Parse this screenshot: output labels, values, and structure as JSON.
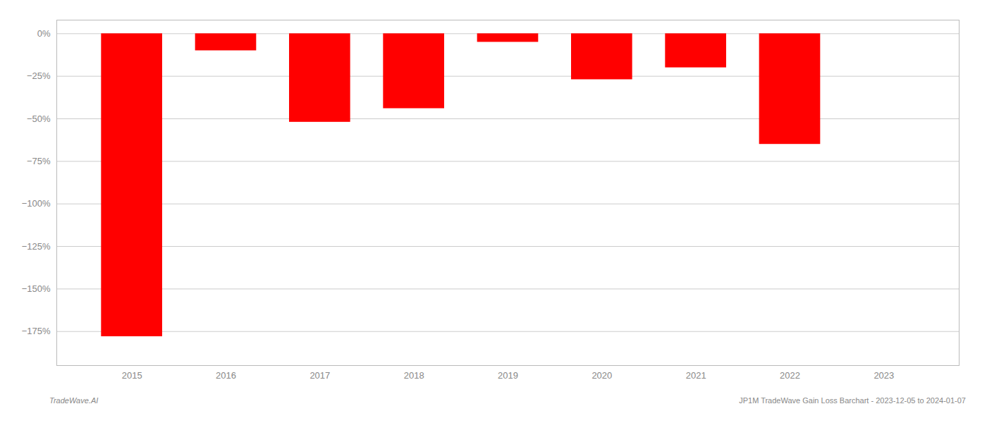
{
  "chart_data": {
    "type": "bar",
    "x": [
      2015,
      2016,
      2017,
      2018,
      2019,
      2020,
      2021,
      2022
    ],
    "values": [
      -178,
      -10,
      -52,
      -44,
      -5,
      -27,
      -20,
      -65
    ],
    "color": "#ff0000",
    "xlim": [
      2014.2,
      2023.8
    ],
    "xticks": [
      2015,
      2016,
      2017,
      2018,
      2019,
      2020,
      2021,
      2022,
      2023
    ],
    "ylim": [
      -195,
      8
    ],
    "yticks": [
      {
        "value": 0,
        "label": "0%"
      },
      {
        "value": -25,
        "label": "−25%"
      },
      {
        "value": -50,
        "label": "−50%"
      },
      {
        "value": -75,
        "label": "−75%"
      },
      {
        "value": -100,
        "label": "−100%"
      },
      {
        "value": -125,
        "label": "−125%"
      },
      {
        "value": -150,
        "label": "−150%"
      },
      {
        "value": -175,
        "label": "−175%"
      }
    ],
    "grid": true,
    "annotations": [
      "TradeWave.AI",
      "JP1M TradeWave Gain Loss Barchart - 2023-12-05 to 2024-01-07"
    ]
  }
}
